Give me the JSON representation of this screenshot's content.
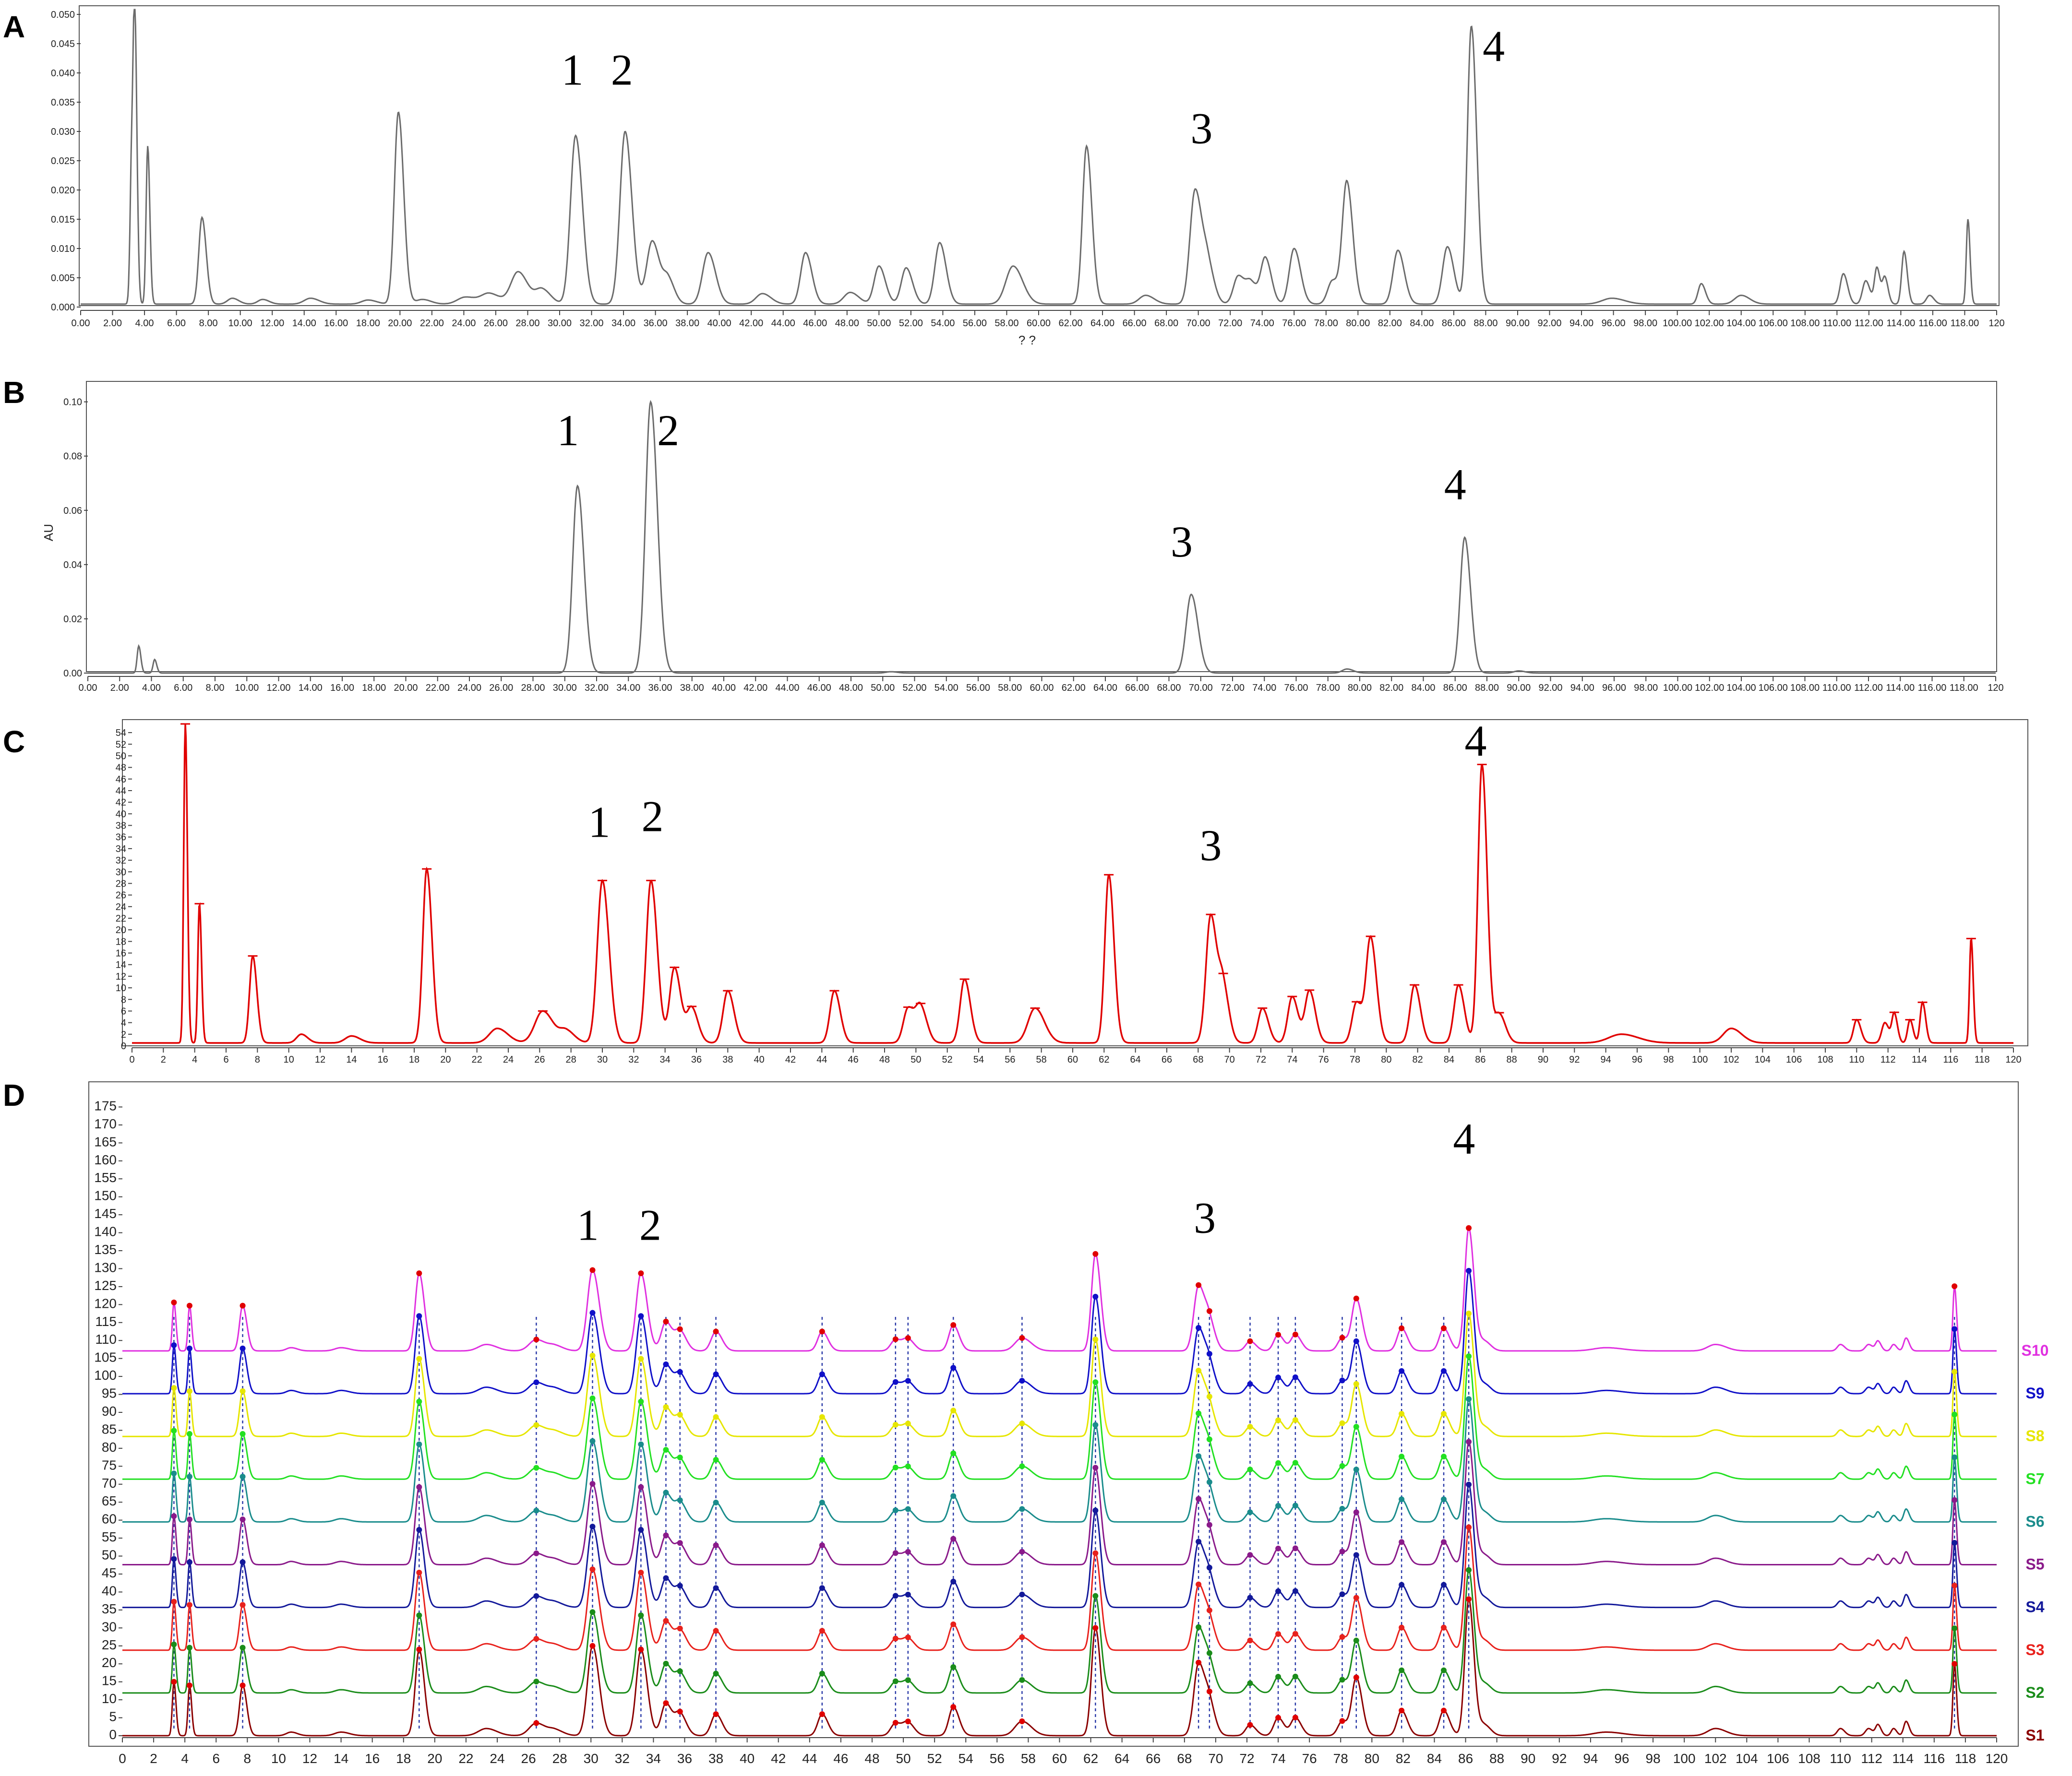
{
  "chart_data": [
    {
      "id": "A",
      "type": "line",
      "panel_label": "A",
      "x_tick_labels": [
        "0.00",
        "2.00",
        "4.00",
        "6.00",
        "8.00",
        "10.00",
        "12.00",
        "14.00",
        "16.00",
        "18.00",
        "20.00",
        "22.00",
        "24.00",
        "26.00",
        "28.00",
        "30.00",
        "32.00",
        "34.00",
        "36.00",
        "38.00",
        "40.00",
        "42.00",
        "44.00",
        "46.00",
        "48.00",
        "50.00",
        "52.00",
        "54.00",
        "56.00",
        "58.00",
        "60.00",
        "62.00",
        "64.00",
        "66.00",
        "68.00",
        "70.00",
        "72.00",
        "74.00",
        "76.00",
        "78.00",
        "80.00",
        "82.00",
        "84.00",
        "86.00",
        "88.00",
        "90.00",
        "92.00",
        "94.00",
        "96.00",
        "98.00",
        "100.00",
        "102.00",
        "104.00",
        "106.00",
        "108.00",
        "110.00",
        "112.00",
        "114.00",
        "116.00",
        "118.00",
        "120"
      ],
      "y_tick_labels": [
        "0.000",
        "0.005",
        "0.010",
        "0.015",
        "0.020",
        "0.025",
        "0.030",
        "0.035",
        "0.040",
        "0.045",
        "0.050"
      ],
      "xlabel": "? ?",
      "xlim": [
        0,
        120
      ],
      "ylim": [
        0,
        0.05
      ],
      "baseline": 0.0005,
      "color": "#6b6b6b",
      "peaks": [
        [
          3.2,
          0.025,
          0.1
        ],
        [
          3.4,
          0.0445,
          0.1
        ],
        [
          4.2,
          0.027,
          0.1
        ],
        [
          7.6,
          0.0148,
          0.2
        ],
        [
          9.5,
          0.001,
          0.3
        ],
        [
          11.4,
          0.0008,
          0.3
        ],
        [
          14.4,
          0.001,
          0.4
        ],
        [
          18.0,
          0.0007,
          0.4
        ],
        [
          19.9,
          0.0328,
          0.25
        ],
        [
          21.4,
          0.0008,
          0.4
        ],
        [
          24.1,
          0.0012,
          0.5
        ],
        [
          25.6,
          0.0018,
          0.5
        ],
        [
          27.4,
          0.0055,
          0.45
        ],
        [
          28.9,
          0.0025,
          0.4
        ],
        [
          31.0,
          0.0288,
          0.32
        ],
        [
          34.1,
          0.0295,
          0.32
        ],
        [
          35.8,
          0.0108,
          0.35
        ],
        [
          36.8,
          0.004,
          0.3
        ],
        [
          39.3,
          0.0088,
          0.35
        ],
        [
          42.7,
          0.0018,
          0.4
        ],
        [
          45.4,
          0.0088,
          0.3
        ],
        [
          48.2,
          0.002,
          0.4
        ],
        [
          50.0,
          0.0065,
          0.3
        ],
        [
          51.7,
          0.0062,
          0.3
        ],
        [
          53.8,
          0.0105,
          0.3
        ],
        [
          58.4,
          0.0065,
          0.45
        ],
        [
          63.0,
          0.027,
          0.25
        ],
        [
          66.7,
          0.0015,
          0.4
        ],
        [
          69.8,
          0.0195,
          0.32
        ],
        [
          70.6,
          0.006,
          0.3
        ],
        [
          72.5,
          0.0048,
          0.3
        ],
        [
          73.3,
          0.0035,
          0.3
        ],
        [
          74.2,
          0.0078,
          0.28
        ],
        [
          76.0,
          0.0095,
          0.3
        ],
        [
          78.4,
          0.004,
          0.3
        ],
        [
          79.3,
          0.0208,
          0.28
        ],
        [
          82.5,
          0.0092,
          0.3
        ],
        [
          85.6,
          0.0098,
          0.3
        ],
        [
          87.1,
          0.0475,
          0.25
        ],
        [
          95.9,
          0.001,
          0.6
        ],
        [
          101.5,
          0.0035,
          0.2
        ],
        [
          104.0,
          0.0015,
          0.4
        ],
        [
          110.4,
          0.0052,
          0.2
        ],
        [
          111.8,
          0.004,
          0.2
        ],
        [
          112.5,
          0.0062,
          0.15
        ],
        [
          113.0,
          0.0045,
          0.15
        ],
        [
          114.2,
          0.009,
          0.15
        ],
        [
          115.8,
          0.0015,
          0.2
        ],
        [
          118.2,
          0.0145,
          0.1
        ]
      ],
      "annotations": [
        {
          "text": "1",
          "x": 30.8,
          "y": 0.038
        },
        {
          "text": "2",
          "x": 33.9,
          "y": 0.038
        },
        {
          "text": "3",
          "x": 70.2,
          "y": 0.028
        },
        {
          "text": "4",
          "x": 88.5,
          "y": 0.042
        }
      ]
    },
    {
      "id": "B",
      "type": "line",
      "panel_label": "B",
      "x_tick_labels": [
        "0.00",
        "2.00",
        "4.00",
        "6.00",
        "8.00",
        "10.00",
        "12.00",
        "14.00",
        "16.00",
        "18.00",
        "20.00",
        "22.00",
        "24.00",
        "26.00",
        "28.00",
        "30.00",
        "32.00",
        "34.00",
        "36.00",
        "38.00",
        "40.00",
        "42.00",
        "44.00",
        "46.00",
        "48.00",
        "50.00",
        "52.00",
        "54.00",
        "56.00",
        "58.00",
        "60.00",
        "62.00",
        "64.00",
        "66.00",
        "68.00",
        "70.00",
        "72.00",
        "74.00",
        "76.00",
        "78.00",
        "80.00",
        "82.00",
        "84.00",
        "86.00",
        "88.00",
        "90.00",
        "92.00",
        "94.00",
        "96.00",
        "98.00",
        "100.00",
        "102.00",
        "104.00",
        "106.00",
        "108.00",
        "110.00",
        "112.00",
        "114.00",
        "116.00",
        "118.00",
        "120"
      ],
      "y_tick_labels": [
        "0.00",
        "0.02",
        "0.04",
        "0.06",
        "0.08",
        "0.10"
      ],
      "ylabel": "AU",
      "xlim": [
        0,
        120
      ],
      "ylim": [
        0,
        0.104
      ],
      "baseline": 0,
      "color": "#6b6b6b",
      "peaks": [
        [
          3.2,
          0.01,
          0.1
        ],
        [
          4.2,
          0.005,
          0.1
        ],
        [
          30.8,
          0.069,
          0.3
        ],
        [
          35.4,
          0.1,
          0.32
        ],
        [
          50.5,
          0.0005,
          0.3
        ],
        [
          69.4,
          0.029,
          0.32
        ],
        [
          79.2,
          0.0015,
          0.3
        ],
        [
          86.6,
          0.05,
          0.28
        ],
        [
          90.0,
          0.0008,
          0.3
        ]
      ],
      "annotations": [
        {
          "text": "1",
          "x": 30.2,
          "y": 0.084
        },
        {
          "text": "2",
          "x": 36.5,
          "y": 0.084
        },
        {
          "text": "3",
          "x": 68.8,
          "y": 0.043
        },
        {
          "text": "4",
          "x": 86.0,
          "y": 0.064
        }
      ]
    },
    {
      "id": "C",
      "type": "line",
      "panel_label": "C",
      "x_tick_labels": [
        "0",
        "2",
        "4",
        "6",
        "8",
        "10",
        "12",
        "14",
        "16",
        "18",
        "20",
        "22",
        "24",
        "26",
        "28",
        "30",
        "32",
        "34",
        "36",
        "38",
        "40",
        "42",
        "44",
        "46",
        "48",
        "50",
        "52",
        "54",
        "56",
        "58",
        "60",
        "62",
        "64",
        "66",
        "68",
        "70",
        "72",
        "74",
        "76",
        "78",
        "80",
        "82",
        "84",
        "86",
        "88",
        "90",
        "92",
        "94",
        "96",
        "98",
        "100",
        "102",
        "104",
        "106",
        "108",
        "110",
        "112",
        "114",
        "116",
        "118",
        "120"
      ],
      "y_tick_labels": [
        "0",
        "2",
        "4",
        "6",
        "8",
        "10",
        "12",
        "14",
        "16",
        "18",
        "20",
        "22",
        "24",
        "26",
        "28",
        "30",
        "32",
        "34",
        "36",
        "38",
        "40",
        "42",
        "44",
        "46",
        "48",
        "50",
        "52",
        "54"
      ],
      "xlim": [
        0,
        120
      ],
      "ylim": [
        0,
        55
      ],
      "baseline": 0.5,
      "color": "#e00000",
      "peaks": [
        [
          3.4,
          55,
          0.1
        ],
        [
          4.3,
          24,
          0.1
        ],
        [
          7.7,
          15,
          0.2
        ],
        [
          10.8,
          1.5,
          0.3
        ],
        [
          14.0,
          1.2,
          0.4
        ],
        [
          18.8,
          30,
          0.25
        ],
        [
          23.3,
          2.5,
          0.5
        ],
        [
          26.2,
          5.5,
          0.5
        ],
        [
          27.7,
          2,
          0.4
        ],
        [
          30.0,
          28,
          0.32
        ],
        [
          33.1,
          28,
          0.3
        ],
        [
          34.6,
          13,
          0.3
        ],
        [
          35.7,
          6,
          0.3
        ],
        [
          38.0,
          9,
          0.3
        ],
        [
          44.8,
          9,
          0.28
        ],
        [
          49.5,
          6,
          0.3
        ],
        [
          50.3,
          6,
          0.3
        ],
        [
          53.1,
          11,
          0.28
        ],
        [
          57.6,
          6,
          0.45
        ],
        [
          62.3,
          29,
          0.25
        ],
        [
          68.8,
          22,
          0.3
        ],
        [
          69.6,
          9,
          0.28
        ],
        [
          72.1,
          6,
          0.28
        ],
        [
          74.0,
          8,
          0.28
        ],
        [
          75.1,
          9,
          0.28
        ],
        [
          78.1,
          7,
          0.28
        ],
        [
          79.0,
          18,
          0.28
        ],
        [
          81.8,
          10,
          0.28
        ],
        [
          84.6,
          10,
          0.28
        ],
        [
          86.1,
          48,
          0.25
        ],
        [
          87.2,
          5,
          0.3
        ],
        [
          95.0,
          1.5,
          0.8
        ],
        [
          102.0,
          2.5,
          0.5
        ],
        [
          110.0,
          4,
          0.2
        ],
        [
          111.8,
          3.5,
          0.2
        ],
        [
          112.4,
          5,
          0.15
        ],
        [
          113.4,
          4,
          0.15
        ],
        [
          114.2,
          7,
          0.15
        ],
        [
          117.3,
          18,
          0.1
        ]
      ],
      "annotations": [
        {
          "text": "1",
          "x": 29.8,
          "y": 36
        },
        {
          "text": "2",
          "x": 33.2,
          "y": 37
        },
        {
          "text": "3",
          "x": 68.8,
          "y": 32
        },
        {
          "text": "4",
          "x": 85.7,
          "y": 50
        }
      ]
    },
    {
      "id": "D",
      "type": "line",
      "panel_label": "D",
      "x_tick_labels": [
        "0",
        "2",
        "4",
        "6",
        "8",
        "10",
        "12",
        "14",
        "16",
        "18",
        "20",
        "22",
        "24",
        "26",
        "28",
        "30",
        "32",
        "34",
        "36",
        "38",
        "40",
        "42",
        "44",
        "46",
        "48",
        "50",
        "52",
        "54",
        "56",
        "58",
        "60",
        "62",
        "64",
        "66",
        "68",
        "70",
        "72",
        "74",
        "76",
        "78",
        "80",
        "82",
        "84",
        "86",
        "88",
        "90",
        "92",
        "94",
        "96",
        "98",
        "100",
        "102",
        "104",
        "106",
        "108",
        "110",
        "112",
        "114",
        "116",
        "118",
        "120"
      ],
      "y_tick_labels": [
        "0",
        "5",
        "10",
        "15",
        "20",
        "25",
        "30",
        "35",
        "40",
        "45",
        "50",
        "55",
        "60",
        "65",
        "70",
        "75",
        "80",
        "85",
        "90",
        "95",
        "100",
        "105",
        "110",
        "115",
        "120",
        "125",
        "130",
        "135",
        "140",
        "145",
        "150",
        "155",
        "160",
        "165",
        "170",
        "175"
      ],
      "xlim": [
        0,
        120
      ],
      "ylim": [
        0,
        180
      ],
      "series_offset_step": 11.9,
      "common_peaks": [
        3.3,
        4.3,
        7.7,
        19.0,
        26.5,
        30.1,
        33.2,
        34.8,
        35.7,
        38.0,
        44.8,
        49.5,
        50.3,
        53.2,
        57.6,
        62.3,
        68.9,
        69.6,
        72.2,
        74.0,
        75.1,
        78.1,
        79.0,
        81.9,
        84.6,
        86.2,
        117.3
      ],
      "peaks": [
        [
          3.3,
          15,
          0.1
        ],
        [
          4.3,
          14,
          0.1
        ],
        [
          7.7,
          14,
          0.2
        ],
        [
          10.8,
          1,
          0.3
        ],
        [
          14.0,
          1,
          0.4
        ],
        [
          19.0,
          24,
          0.25
        ],
        [
          23.3,
          2,
          0.5
        ],
        [
          26.5,
          3.5,
          0.45
        ],
        [
          27.7,
          1.5,
          0.4
        ],
        [
          30.1,
          25,
          0.32
        ],
        [
          33.2,
          24,
          0.3
        ],
        [
          34.8,
          9,
          0.3
        ],
        [
          35.7,
          6,
          0.3
        ],
        [
          38.0,
          6,
          0.3
        ],
        [
          44.8,
          6,
          0.28
        ],
        [
          49.5,
          3.5,
          0.3
        ],
        [
          50.3,
          3.5,
          0.3
        ],
        [
          53.2,
          8,
          0.28
        ],
        [
          57.6,
          4,
          0.45
        ],
        [
          62.3,
          30,
          0.25
        ],
        [
          68.9,
          20,
          0.3
        ],
        [
          69.6,
          8,
          0.28
        ],
        [
          72.2,
          3,
          0.28
        ],
        [
          74.0,
          5,
          0.28
        ],
        [
          75.1,
          5,
          0.28
        ],
        [
          78.1,
          4,
          0.28
        ],
        [
          79.0,
          16,
          0.28
        ],
        [
          81.9,
          7,
          0.28
        ],
        [
          84.6,
          7,
          0.28
        ],
        [
          86.2,
          38,
          0.25
        ],
        [
          87.2,
          3,
          0.3
        ],
        [
          95.0,
          1,
          0.8
        ],
        [
          102.0,
          2,
          0.5
        ],
        [
          110.0,
          2,
          0.2
        ],
        [
          111.8,
          2,
          0.2
        ],
        [
          112.4,
          3,
          0.15
        ],
        [
          113.4,
          2,
          0.15
        ],
        [
          114.2,
          4,
          0.15
        ],
        [
          117.3,
          20,
          0.1
        ]
      ],
      "series": [
        {
          "name": "S1",
          "color": "#8b0000",
          "peak_scale": 1.0
        },
        {
          "name": "S2",
          "color": "#1a8c1a",
          "peak_scale": 0.9
        },
        {
          "name": "S3",
          "color": "#e8211c",
          "peak_scale": 0.9
        },
        {
          "name": "S4",
          "color": "#13199a",
          "peak_scale": 0.9
        },
        {
          "name": "S5",
          "color": "#8a1a8a",
          "peak_scale": 0.9
        },
        {
          "name": "S6",
          "color": "#1a8c8c",
          "peak_scale": 0.9
        },
        {
          "name": "S7",
          "color": "#22e022",
          "peak_scale": 0.9
        },
        {
          "name": "S8",
          "color": "#e6e600",
          "peak_scale": 0.9
        },
        {
          "name": "S9",
          "color": "#1010c8",
          "peak_scale": 0.9
        },
        {
          "name": "S10",
          "color": "#e030e0",
          "peak_scale": 0.9
        }
      ],
      "annotations": [
        {
          "text": "1",
          "x": 29.8,
          "y": 138
        },
        {
          "text": "2",
          "x": 33.8,
          "y": 138
        },
        {
          "text": "3",
          "x": 69.3,
          "y": 140
        },
        {
          "text": "4",
          "x": 85.9,
          "y": 162
        }
      ]
    }
  ]
}
